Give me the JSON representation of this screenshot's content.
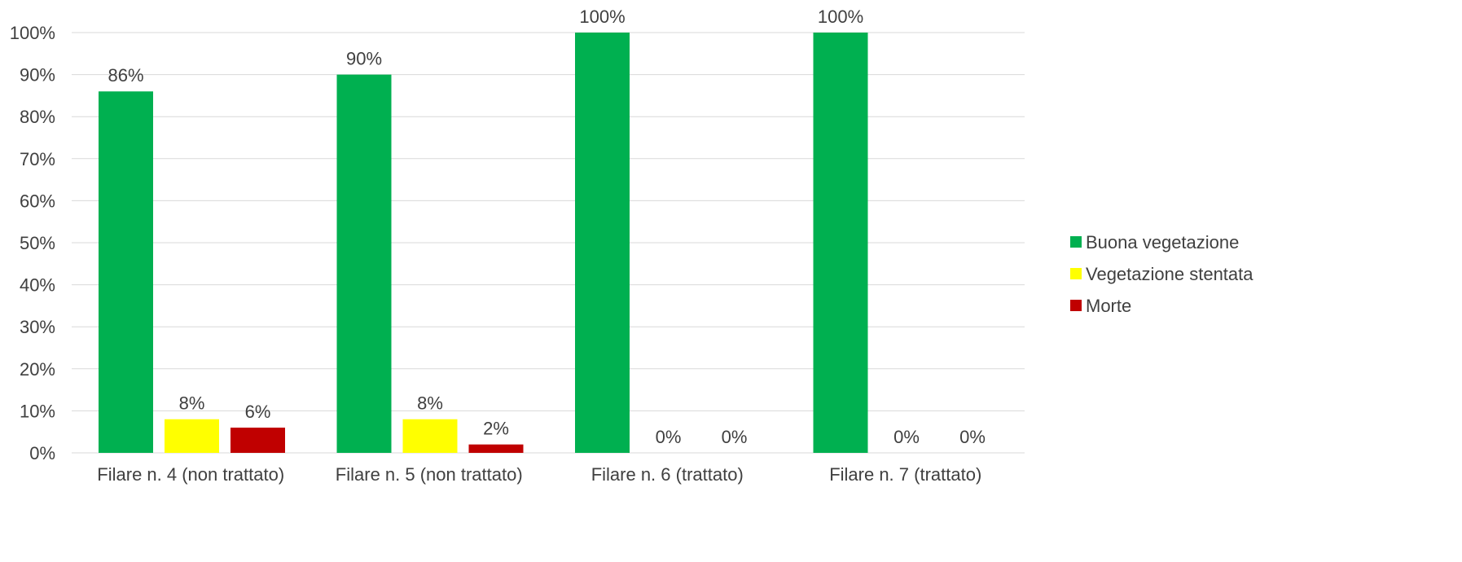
{
  "chart_data": {
    "type": "bar",
    "title": "",
    "xlabel": "",
    "ylabel": "",
    "categories": [
      "Filare n. 4 (non trattato)",
      "Filare n. 5 (non trattato)",
      "Filare n. 6 (trattato)",
      "Filare n. 7 (trattato)"
    ],
    "series": [
      {
        "name": "Buona vegetazione",
        "color": "#00b050",
        "values": [
          86,
          90,
          100,
          100
        ]
      },
      {
        "name": "Vegetazione stentata",
        "color": "#ffff00",
        "values": [
          8,
          8,
          0,
          0
        ]
      },
      {
        "name": "Morte",
        "color": "#c00000",
        "values": [
          6,
          2,
          0,
          0
        ]
      }
    ],
    "data_label_suffix": "%",
    "ylim": [
      0,
      100
    ],
    "yticks": [
      0,
      10,
      20,
      30,
      40,
      50,
      60,
      70,
      80,
      90,
      100
    ],
    "ytick_labels": [
      "0%",
      "10%",
      "20%",
      "30%",
      "40%",
      "50%",
      "60%",
      "70%",
      "80%",
      "90%",
      "100%"
    ],
    "grid": true,
    "legend": "right"
  }
}
